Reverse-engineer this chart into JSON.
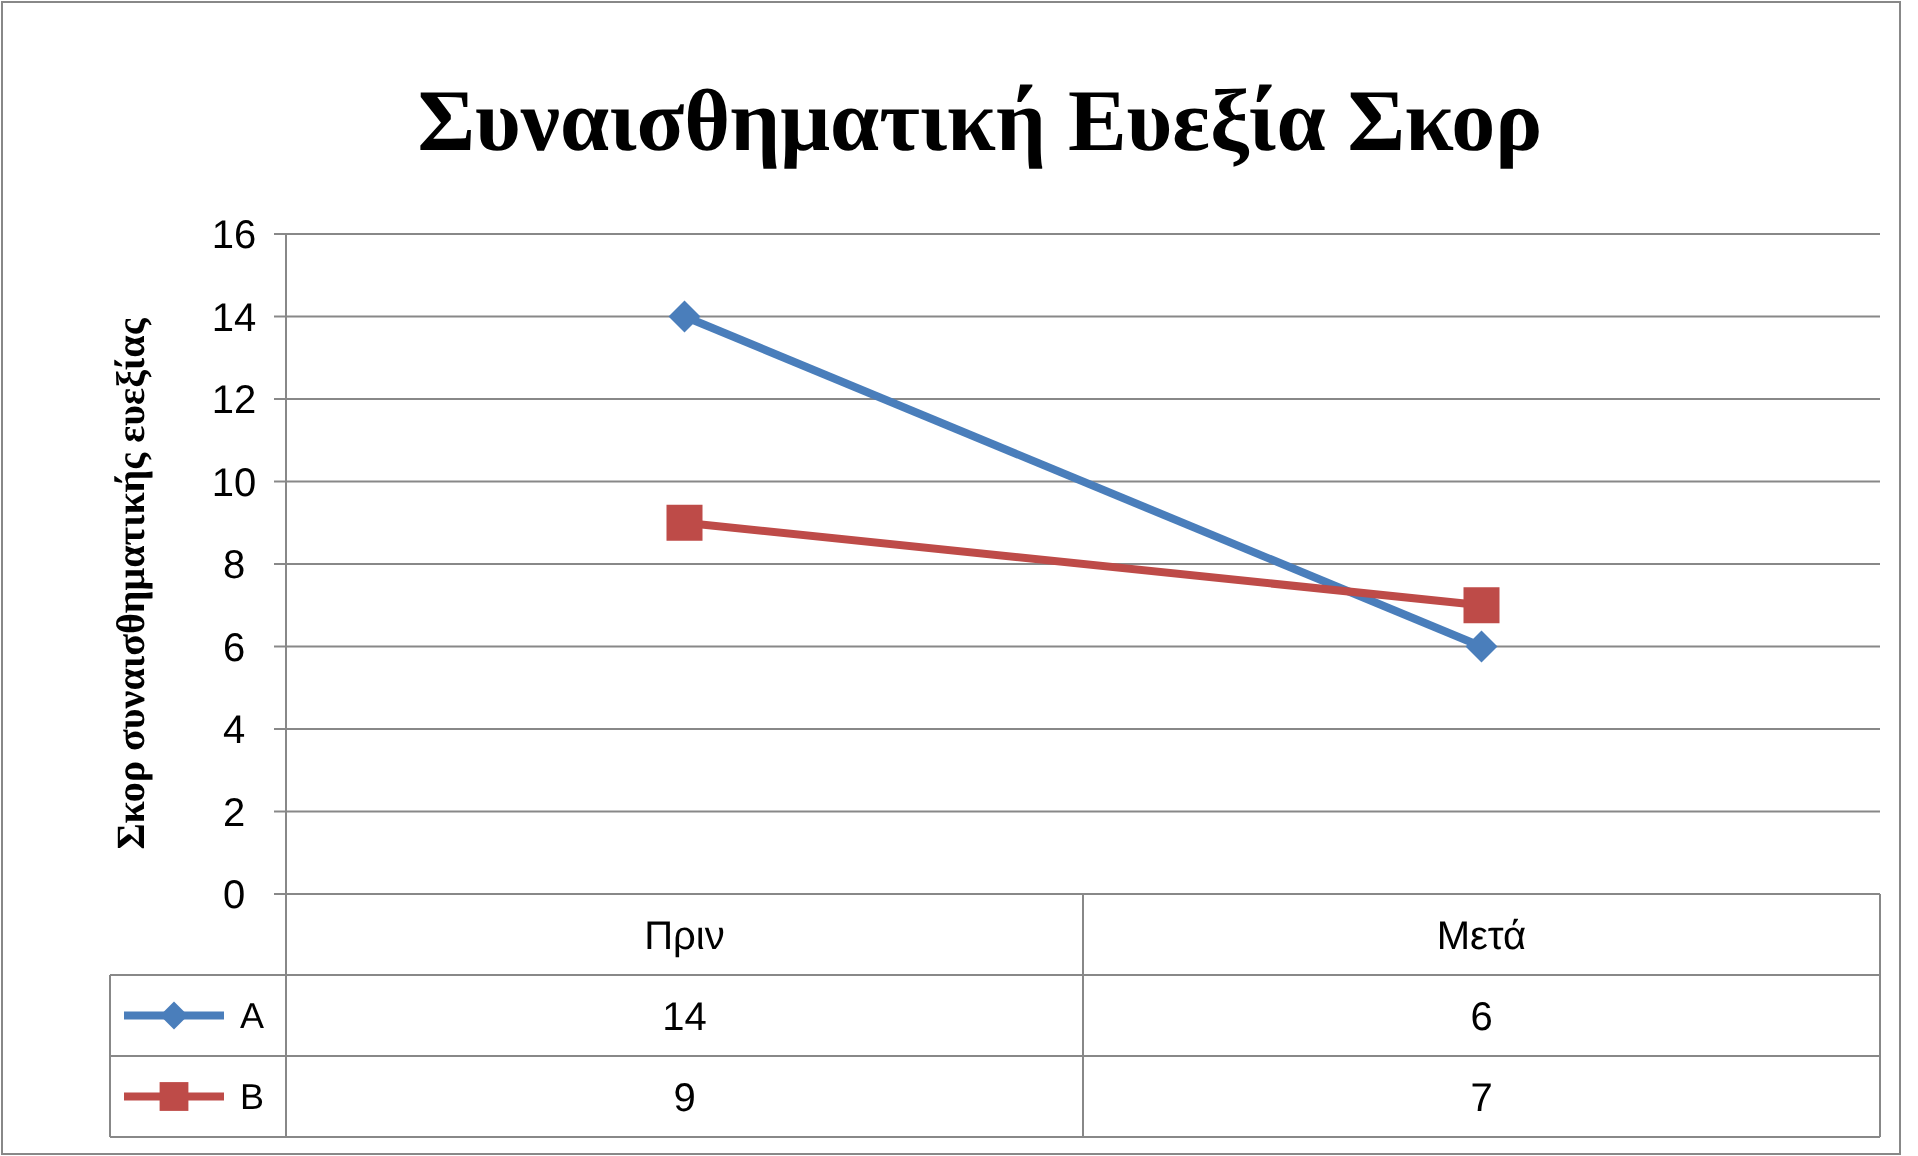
{
  "chart_data": {
    "type": "line",
    "title": "Συναισθηματική Ευεξία Σκορ",
    "ylabel": "Σκορ συναισθηματικής ευεξίας",
    "categories": [
      "Πριν",
      "Μετά"
    ],
    "series": [
      {
        "name": "A",
        "color": "#4a7ebb",
        "values": [
          14,
          6
        ],
        "marker": "diamond"
      },
      {
        "name": "B",
        "color": "#be4b48",
        "values": [
          9,
          7
        ],
        "marker": "square"
      }
    ],
    "ylim": [
      0,
      16
    ],
    "yticks": [
      0,
      2,
      4,
      6,
      8,
      10,
      12,
      14,
      16
    ],
    "grid": "y",
    "data_labels": true,
    "legend": "bottom"
  }
}
